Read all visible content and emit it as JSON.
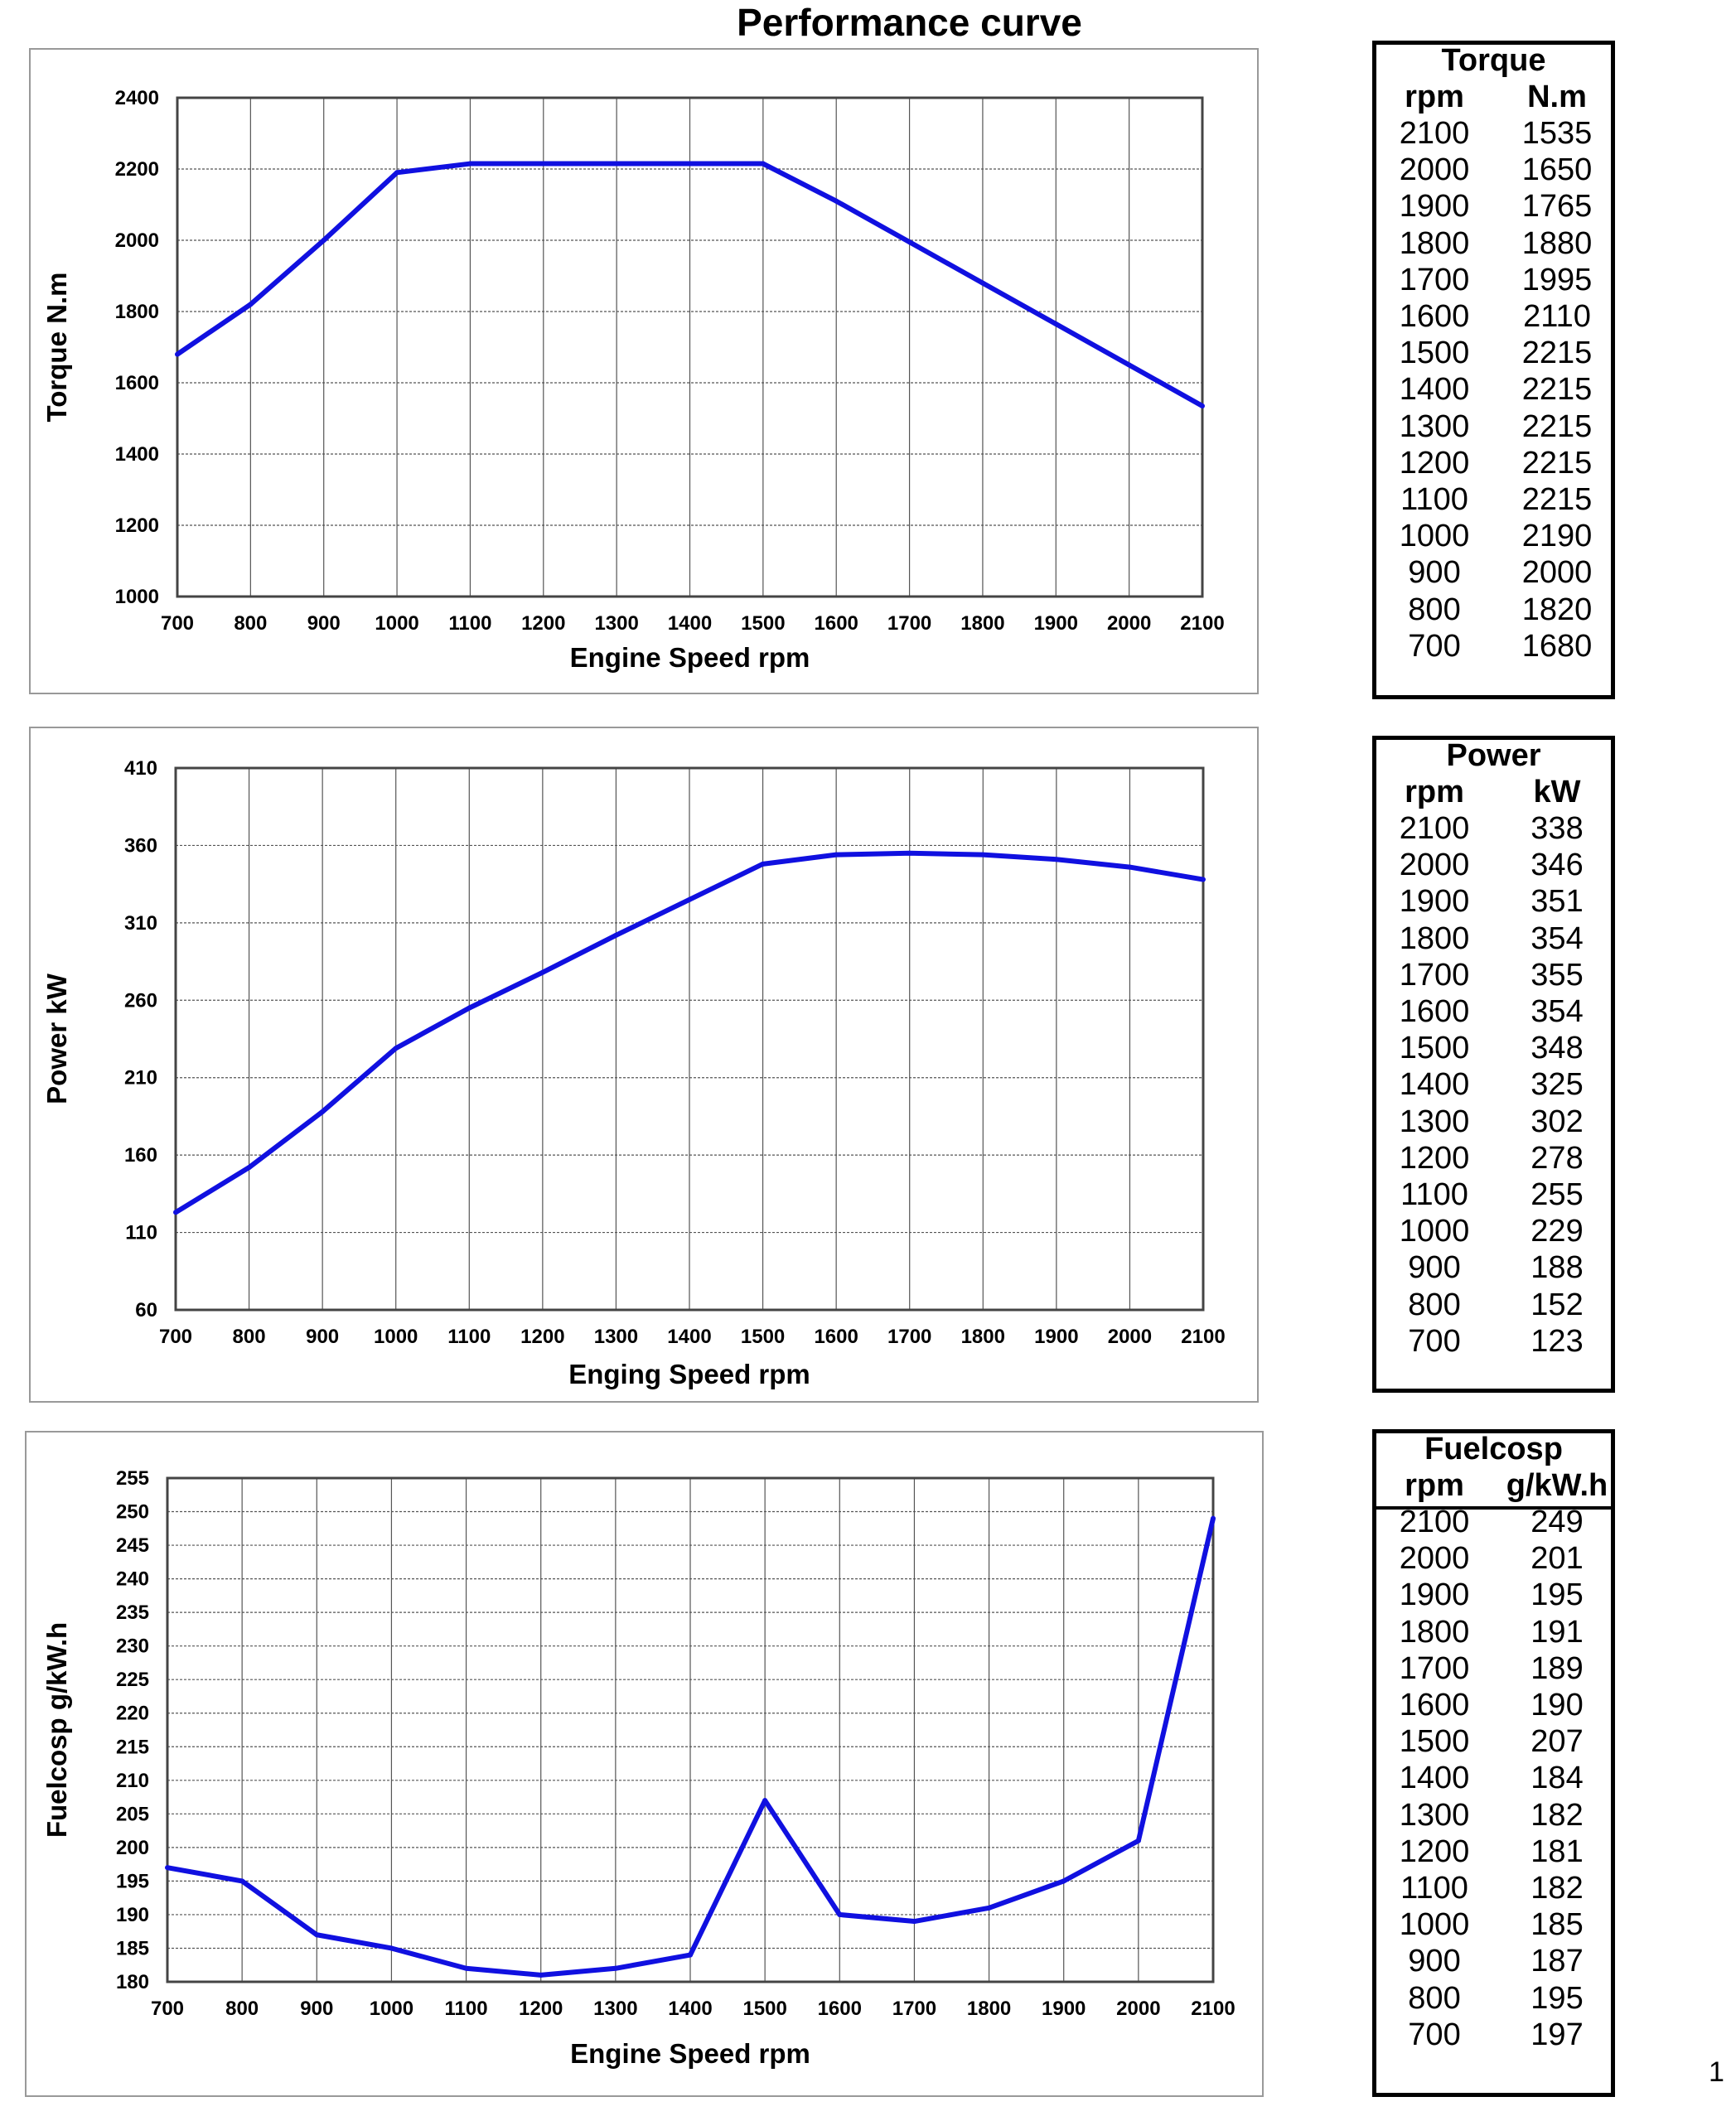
{
  "title": "Performance curve",
  "page_number": "1",
  "colors": {
    "line": "#1010e0",
    "grid": "#555555",
    "frame": "#999999"
  },
  "chart_data": [
    {
      "type": "line",
      "id": "torque",
      "xlabel": "Engine Speed rpm",
      "ylabel": "Torque N.m",
      "xlim": [
        700,
        2100
      ],
      "ylim": [
        1000,
        2400
      ],
      "xticks": [
        700,
        800,
        900,
        1000,
        1100,
        1200,
        1300,
        1400,
        1500,
        1600,
        1700,
        1800,
        1900,
        2000,
        2100
      ],
      "yticks": [
        1000,
        1200,
        1400,
        1600,
        1800,
        2000,
        2200,
        2400
      ],
      "grid": true,
      "x": [
        700,
        800,
        900,
        1000,
        1100,
        1200,
        1300,
        1400,
        1500,
        1600,
        1700,
        1800,
        1900,
        2000,
        2100
      ],
      "y": [
        1680,
        1820,
        2000,
        2190,
        2215,
        2215,
        2215,
        2215,
        2215,
        2110,
        1995,
        1880,
        1765,
        1650,
        1535
      ]
    },
    {
      "type": "line",
      "id": "power",
      "xlabel": "Enging Speed rpm",
      "ylabel": "Power kW",
      "xlim": [
        700,
        2100
      ],
      "ylim": [
        60,
        410
      ],
      "xticks": [
        700,
        800,
        900,
        1000,
        1100,
        1200,
        1300,
        1400,
        1500,
        1600,
        1700,
        1800,
        1900,
        2000,
        2100
      ],
      "yticks": [
        60,
        110,
        160,
        210,
        260,
        310,
        360,
        410
      ],
      "grid": true,
      "x": [
        700,
        800,
        900,
        1000,
        1100,
        1200,
        1300,
        1400,
        1500,
        1600,
        1700,
        1800,
        1900,
        2000,
        2100
      ],
      "y": [
        123,
        152,
        188,
        229,
        255,
        278,
        302,
        325,
        348,
        354,
        355,
        354,
        351,
        346,
        338
      ]
    },
    {
      "type": "line",
      "id": "fuel",
      "xlabel": "Engine Speed rpm",
      "ylabel": "Fuelcosp g/kW.h",
      "xlim": [
        700,
        2100
      ],
      "ylim": [
        180,
        255
      ],
      "xticks": [
        700,
        800,
        900,
        1000,
        1100,
        1200,
        1300,
        1400,
        1500,
        1600,
        1700,
        1800,
        1900,
        2000,
        2100
      ],
      "yticks": [
        180,
        185,
        190,
        195,
        200,
        205,
        210,
        215,
        220,
        225,
        230,
        235,
        240,
        245,
        250,
        255
      ],
      "grid": true,
      "x": [
        700,
        800,
        900,
        1000,
        1100,
        1200,
        1300,
        1400,
        1500,
        1600,
        1700,
        1800,
        1900,
        2000,
        2100
      ],
      "y": [
        197,
        195,
        187,
        185,
        182,
        181,
        182,
        184,
        207,
        190,
        189,
        191,
        195,
        201,
        249
      ]
    }
  ],
  "tables": [
    {
      "title": "Torque",
      "headers": [
        "rpm",
        "N.m"
      ],
      "rows": [
        [
          "2100",
          "1535"
        ],
        [
          "2000",
          "1650"
        ],
        [
          "1900",
          "1765"
        ],
        [
          "1800",
          "1880"
        ],
        [
          "1700",
          "1995"
        ],
        [
          "1600",
          "2110"
        ],
        [
          "1500",
          "2215"
        ],
        [
          "1400",
          "2215"
        ],
        [
          "1300",
          "2215"
        ],
        [
          "1200",
          "2215"
        ],
        [
          "1100",
          "2215"
        ],
        [
          "1000",
          "2190"
        ],
        [
          "900",
          "2000"
        ],
        [
          "800",
          "1820"
        ],
        [
          "700",
          "1680"
        ]
      ]
    },
    {
      "title": "Power",
      "headers": [
        "rpm",
        "kW"
      ],
      "rows": [
        [
          "2100",
          "338"
        ],
        [
          "2000",
          "346"
        ],
        [
          "1900",
          "351"
        ],
        [
          "1800",
          "354"
        ],
        [
          "1700",
          "355"
        ],
        [
          "1600",
          "354"
        ],
        [
          "1500",
          "348"
        ],
        [
          "1400",
          "325"
        ],
        [
          "1300",
          "302"
        ],
        [
          "1200",
          "278"
        ],
        [
          "1100",
          "255"
        ],
        [
          "1000",
          "229"
        ],
        [
          "900",
          "188"
        ],
        [
          "800",
          "152"
        ],
        [
          "700",
          "123"
        ]
      ]
    },
    {
      "title": "Fuelcosp",
      "headers": [
        "rpm",
        "g/kW.h"
      ],
      "rows": [
        [
          "2100",
          "249"
        ],
        [
          "2000",
          "201"
        ],
        [
          "1900",
          "195"
        ],
        [
          "1800",
          "191"
        ],
        [
          "1700",
          "189"
        ],
        [
          "1600",
          "190"
        ],
        [
          "1500",
          "207"
        ],
        [
          "1400",
          "184"
        ],
        [
          "1300",
          "182"
        ],
        [
          "1200",
          "181"
        ],
        [
          "1100",
          "182"
        ],
        [
          "1000",
          "185"
        ],
        [
          "900",
          "187"
        ],
        [
          "800",
          "195"
        ],
        [
          "700",
          "197"
        ]
      ]
    }
  ]
}
